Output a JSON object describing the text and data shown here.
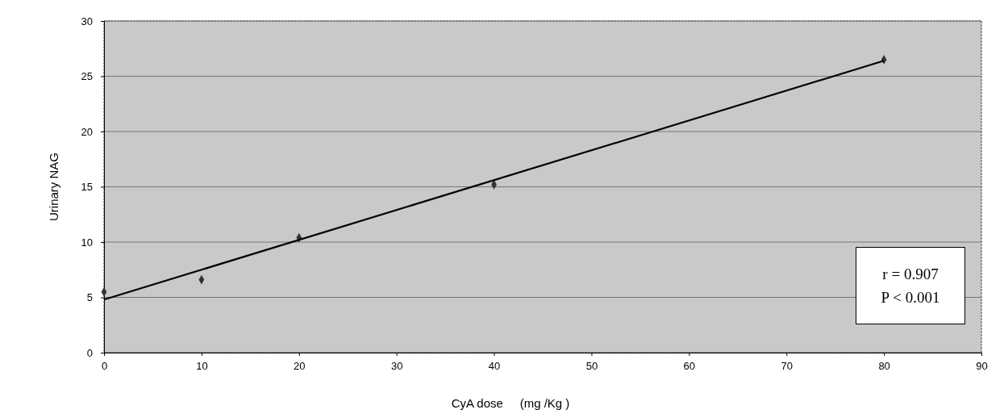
{
  "chart_data": {
    "type": "scatter",
    "xlabel": "CyA dose     (mg /Kg )",
    "ylabel": "Urinary NAG",
    "x": [
      0,
      10,
      20,
      40,
      80
    ],
    "series": [
      {
        "color": "#333333",
        "values": [
          5.5,
          6.6,
          10.4,
          15.2,
          26.5
        ],
        "marker": "diamond"
      },
      {
        "type": "line",
        "color": "#000000",
        "x": [
          0,
          80
        ],
        "values": [
          4.8,
          26.4
        ],
        "marker": "none",
        "line_style": "solid"
      }
    ],
    "xlim": [
      0,
      90
    ],
    "xticks": [
      0,
      10,
      20,
      30,
      40,
      50,
      60,
      70,
      80,
      90
    ],
    "ylim": [
      0,
      30
    ],
    "yticks": [
      0,
      5,
      10,
      15,
      20,
      25,
      30
    ],
    "grid": "y",
    "annotations": [
      "r = 0.907",
      "P < 0.001"
    ]
  }
}
